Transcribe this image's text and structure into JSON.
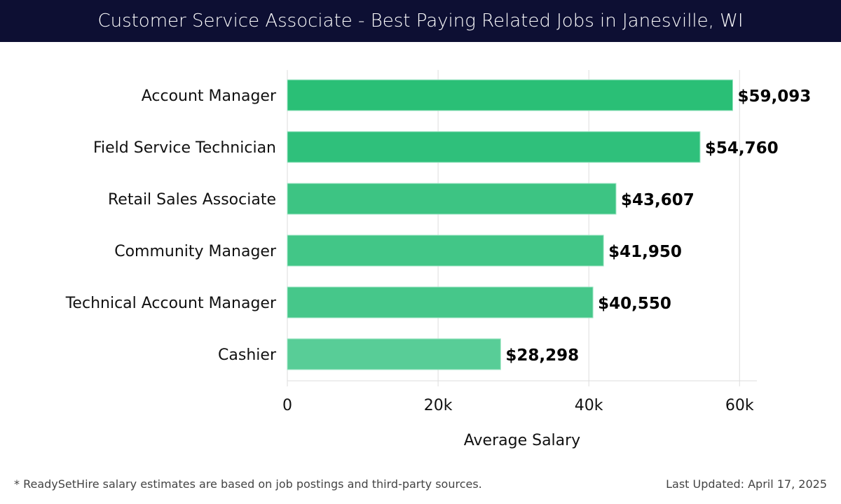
{
  "chart_data": {
    "type": "bar",
    "orientation": "horizontal",
    "title": "Customer Service Associate - Best Paying Related Jobs in Janesville, WI",
    "categories": [
      "Account Manager",
      "Field Service Technician",
      "Retail Sales Associate",
      "Community Manager",
      "Technical Account Manager",
      "Cashier"
    ],
    "values": [
      59093,
      54760,
      43607,
      41950,
      40550,
      28298
    ],
    "data_labels": [
      "$59,093",
      "$54,760",
      "$43,607",
      "$41,950",
      "$40,550",
      "$28,298"
    ],
    "xlabel": "Average Salary",
    "ylabel": "",
    "xlim": [
      0,
      62300
    ],
    "xticks": [
      0,
      20000,
      40000,
      60000
    ],
    "xtick_labels": [
      "0",
      "20k",
      "40k",
      "60k"
    ],
    "grid": true,
    "colors": [
      "#2abf76",
      "#2fc07b",
      "#3dc483",
      "#42c687",
      "#46c78a",
      "#58cd97"
    ]
  },
  "footer": {
    "note": "* ReadySetHire salary estimates are based on job postings and third-party sources.",
    "updated": "Last Updated: April 17, 2025"
  }
}
